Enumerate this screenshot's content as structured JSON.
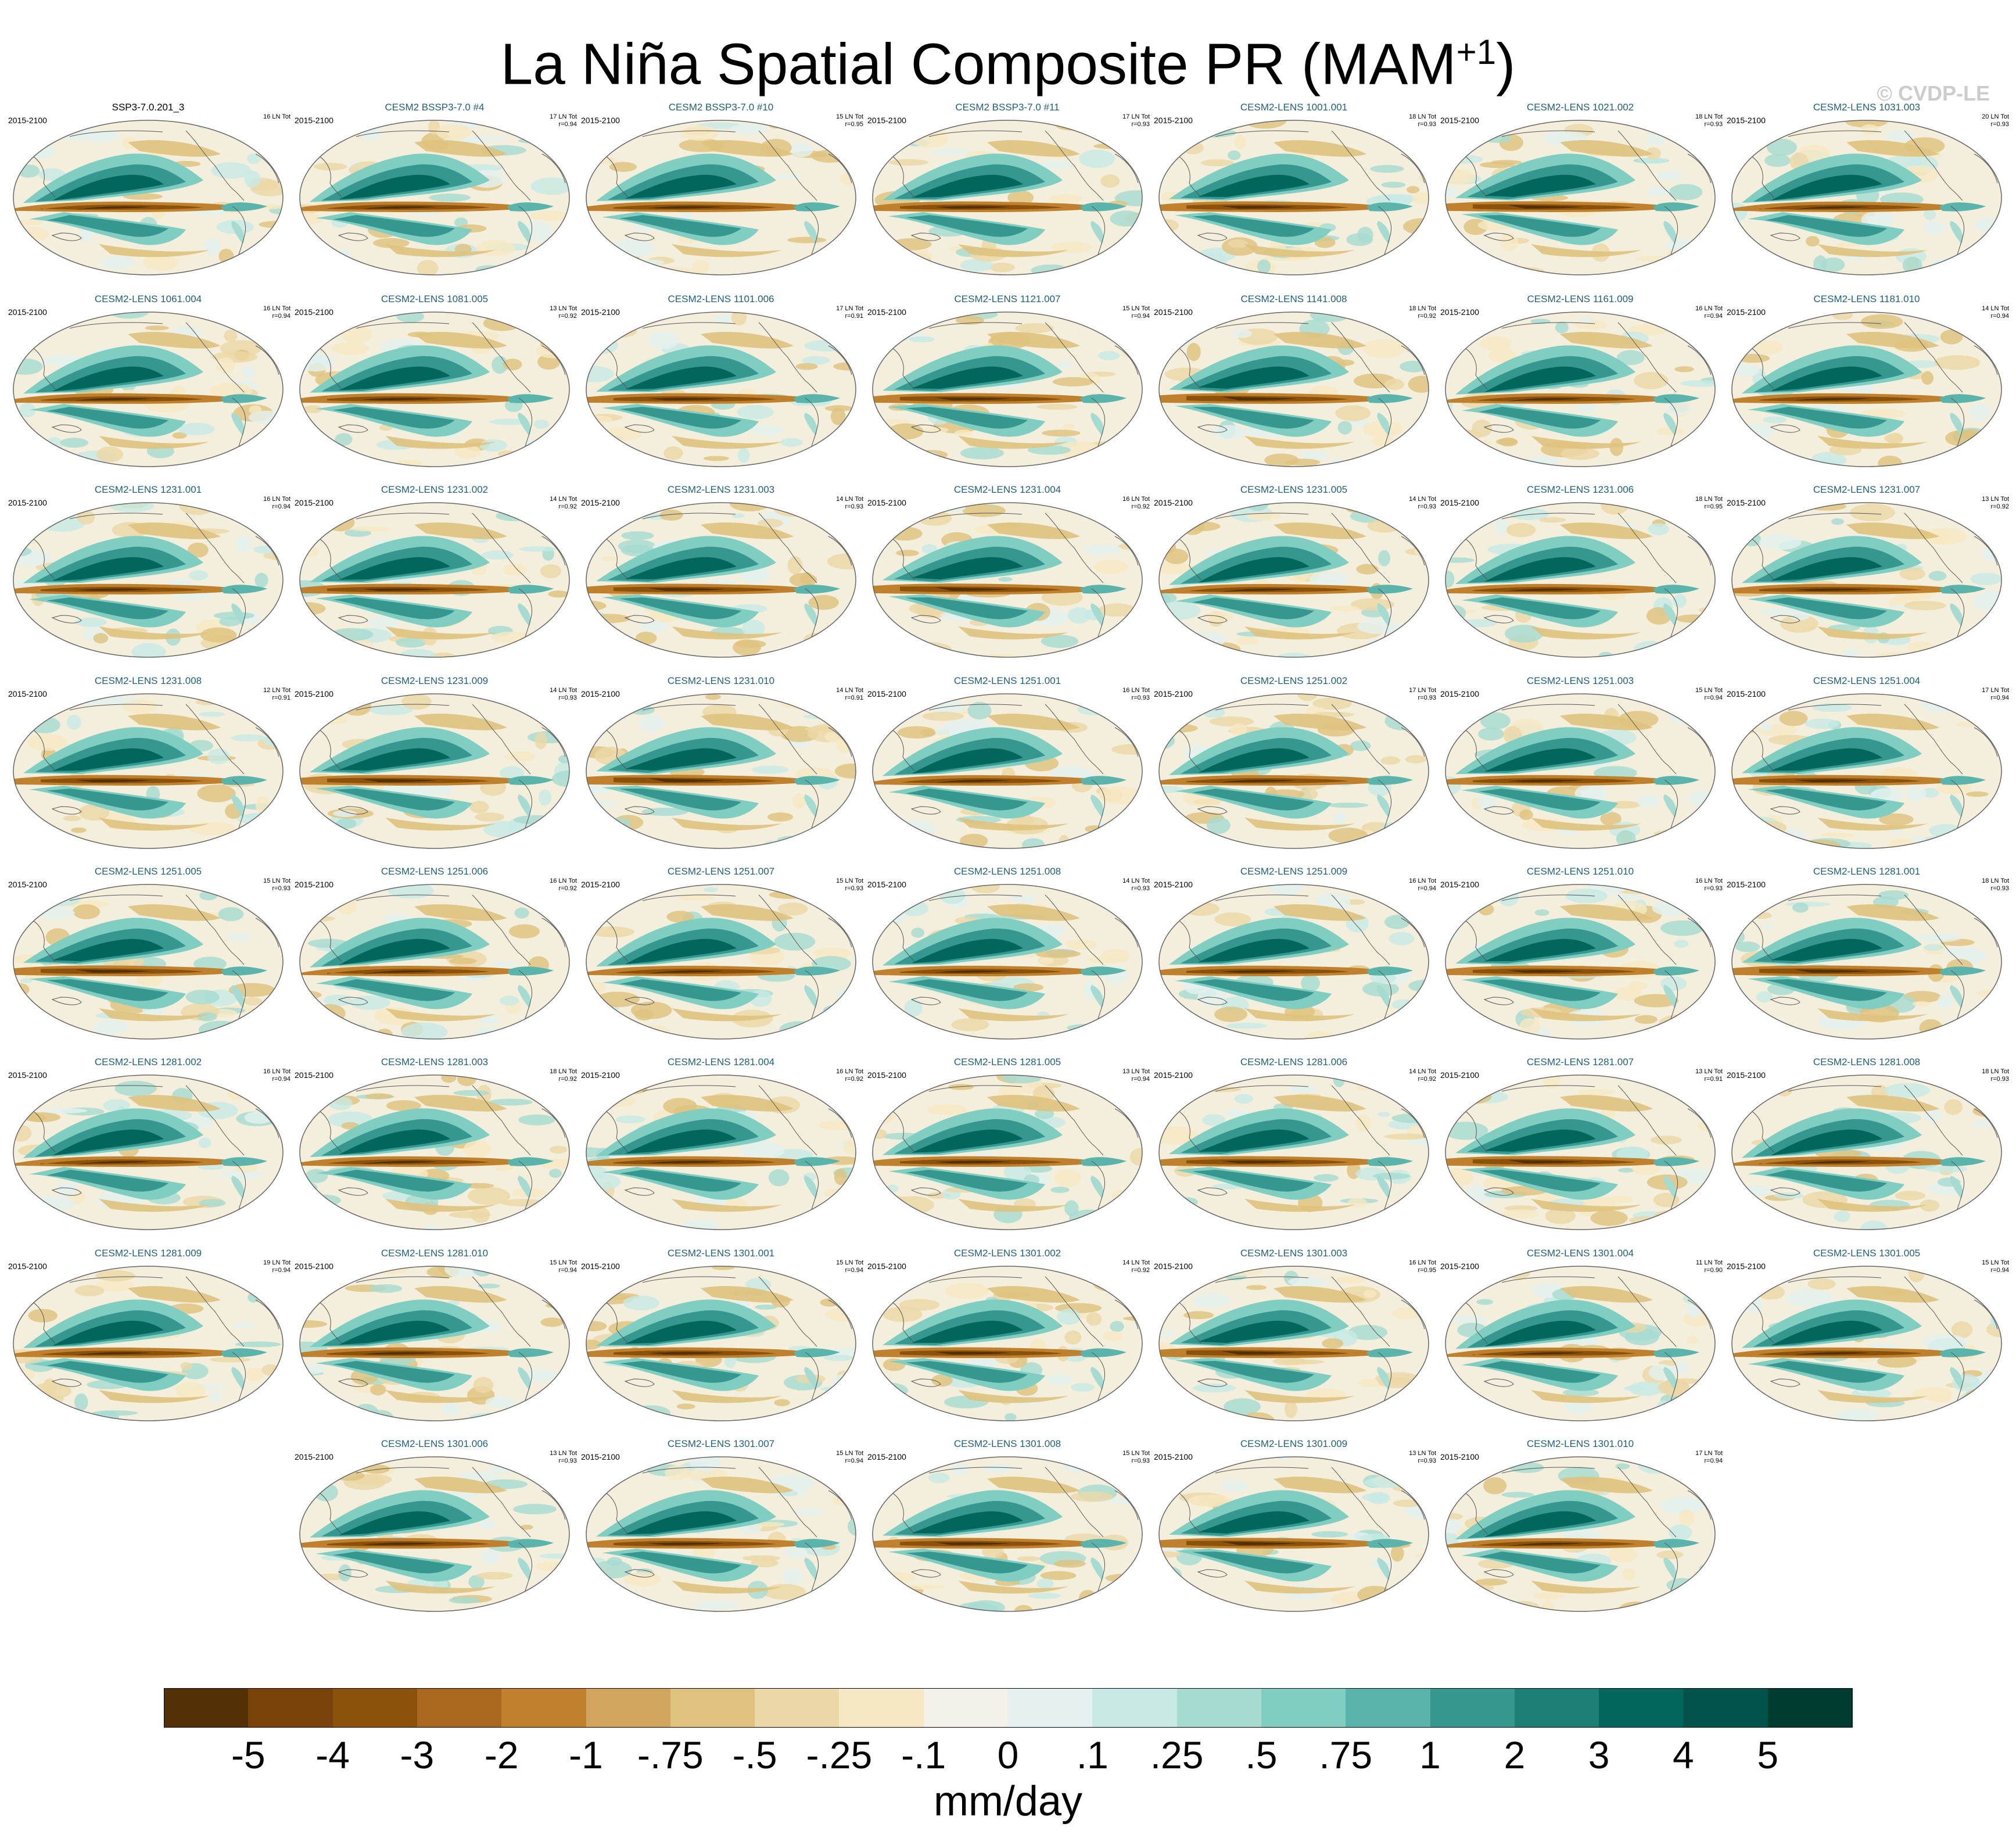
{
  "title": {
    "main": "La Niña Spatial Composite PR (MAM",
    "sup": "+1",
    "close": ")"
  },
  "watermark": "© CVDP-LE",
  "panels": [
    {
      "name": "SSP3-7.0.201_3",
      "period": "2015-2100",
      "events": "16 LN Tot",
      "r": "",
      "obs": true
    },
    {
      "name": "CESM2 BSSP3-7.0 #4",
      "period": "2015-2100",
      "events": "17 LN Tot",
      "r": "r=0.94"
    },
    {
      "name": "CESM2 BSSP3-7.0 #10",
      "period": "2015-2100",
      "events": "15 LN Tot",
      "r": "r=0.95"
    },
    {
      "name": "CESM2 BSSP3-7.0 #11",
      "period": "2015-2100",
      "events": "17 LN Tot",
      "r": "r=0.93"
    },
    {
      "name": "CESM2-LENS 1001.001",
      "period": "2015-2100",
      "events": "18 LN Tot",
      "r": "r=0.93"
    },
    {
      "name": "CESM2-LENS 1021.002",
      "period": "2015-2100",
      "events": "18 LN Tot",
      "r": "r=0.93"
    },
    {
      "name": "CESM2-LENS 1031.003",
      "period": "2015-2100",
      "events": "20 LN Tot",
      "r": "r=0.93"
    },
    {
      "name": "CESM2-LENS 1061.004",
      "period": "2015-2100",
      "events": "16 LN Tot",
      "r": "r=0.94"
    },
    {
      "name": "CESM2-LENS 1081.005",
      "period": "2015-2100",
      "events": "13 LN Tot",
      "r": "r=0.92"
    },
    {
      "name": "CESM2-LENS 1101.006",
      "period": "2015-2100",
      "events": "17 LN Tot",
      "r": "r=0.91"
    },
    {
      "name": "CESM2-LENS 1121.007",
      "period": "2015-2100",
      "events": "15 LN Tot",
      "r": "r=0.94"
    },
    {
      "name": "CESM2-LENS 1141.008",
      "period": "2015-2100",
      "events": "18 LN Tot",
      "r": "r=0.92"
    },
    {
      "name": "CESM2-LENS 1161.009",
      "period": "2015-2100",
      "events": "16 LN Tot",
      "r": "r=0.94"
    },
    {
      "name": "CESM2-LENS 1181.010",
      "period": "2015-2100",
      "events": "14 LN Tot",
      "r": "r=0.94"
    },
    {
      "name": "CESM2-LENS 1231.001",
      "period": "2015-2100",
      "events": "16 LN Tot",
      "r": "r=0.94"
    },
    {
      "name": "CESM2-LENS 1231.002",
      "period": "2015-2100",
      "events": "14 LN Tot",
      "r": "r=0.92"
    },
    {
      "name": "CESM2-LENS 1231.003",
      "period": "2015-2100",
      "events": "14 LN Tot",
      "r": "r=0.93"
    },
    {
      "name": "CESM2-LENS 1231.004",
      "period": "2015-2100",
      "events": "16 LN Tot",
      "r": "r=0.92"
    },
    {
      "name": "CESM2-LENS 1231.005",
      "period": "2015-2100",
      "events": "14 LN Tot",
      "r": "r=0.93"
    },
    {
      "name": "CESM2-LENS 1231.006",
      "period": "2015-2100",
      "events": "18 LN Tot",
      "r": "r=0.95"
    },
    {
      "name": "CESM2-LENS 1231.007",
      "period": "2015-2100",
      "events": "13 LN Tot",
      "r": "r=0.92"
    },
    {
      "name": "CESM2-LENS 1231.008",
      "period": "2015-2100",
      "events": "12 LN Tot",
      "r": "r=0.91"
    },
    {
      "name": "CESM2-LENS 1231.009",
      "period": "2015-2100",
      "events": "14 LN Tot",
      "r": "r=0.93"
    },
    {
      "name": "CESM2-LENS 1231.010",
      "period": "2015-2100",
      "events": "14 LN Tot",
      "r": "r=0.91"
    },
    {
      "name": "CESM2-LENS 1251.001",
      "period": "2015-2100",
      "events": "16 LN Tot",
      "r": "r=0.93"
    },
    {
      "name": "CESM2-LENS 1251.002",
      "period": "2015-2100",
      "events": "17 LN Tot",
      "r": "r=0.93"
    },
    {
      "name": "CESM2-LENS 1251.003",
      "period": "2015-2100",
      "events": "15 LN Tot",
      "r": "r=0.94"
    },
    {
      "name": "CESM2-LENS 1251.004",
      "period": "2015-2100",
      "events": "17 LN Tot",
      "r": "r=0.94"
    },
    {
      "name": "CESM2-LENS 1251.005",
      "period": "2015-2100",
      "events": "15 LN Tot",
      "r": "r=0.93"
    },
    {
      "name": "CESM2-LENS 1251.006",
      "period": "2015-2100",
      "events": "16 LN Tot",
      "r": "r=0.92"
    },
    {
      "name": "CESM2-LENS 1251.007",
      "period": "2015-2100",
      "events": "15 LN Tot",
      "r": "r=0.93"
    },
    {
      "name": "CESM2-LENS 1251.008",
      "period": "2015-2100",
      "events": "14 LN Tot",
      "r": "r=0.93"
    },
    {
      "name": "CESM2-LENS 1251.009",
      "period": "2015-2100",
      "events": "16 LN Tot",
      "r": "r=0.94"
    },
    {
      "name": "CESM2-LENS 1251.010",
      "period": "2015-2100",
      "events": "16 LN Tot",
      "r": "r=0.93"
    },
    {
      "name": "CESM2-LENS 1281.001",
      "period": "2015-2100",
      "events": "18 LN Tot",
      "r": "r=0.93"
    },
    {
      "name": "CESM2-LENS 1281.002",
      "period": "2015-2100",
      "events": "16 LN Tot",
      "r": "r=0.94"
    },
    {
      "name": "CESM2-LENS 1281.003",
      "period": "2015-2100",
      "events": "18 LN Tot",
      "r": "r=0.92"
    },
    {
      "name": "CESM2-LENS 1281.004",
      "period": "2015-2100",
      "events": "16 LN Tot",
      "r": "r=0.92"
    },
    {
      "name": "CESM2-LENS 1281.005",
      "period": "2015-2100",
      "events": "13 LN Tot",
      "r": "r=0.94"
    },
    {
      "name": "CESM2-LENS 1281.006",
      "period": "2015-2100",
      "events": "14 LN Tot",
      "r": "r=0.92"
    },
    {
      "name": "CESM2-LENS 1281.007",
      "period": "2015-2100",
      "events": "13 LN Tot",
      "r": "r=0.91"
    },
    {
      "name": "CESM2-LENS 1281.008",
      "period": "2015-2100",
      "events": "18 LN Tot",
      "r": "r=0.93"
    },
    {
      "name": "CESM2-LENS 1281.009",
      "period": "2015-2100",
      "events": "19 LN Tot",
      "r": "r=0.94"
    },
    {
      "name": "CESM2-LENS 1281.010",
      "period": "2015-2100",
      "events": "15 LN Tot",
      "r": "r=0.94"
    },
    {
      "name": "CESM2-LENS 1301.001",
      "period": "2015-2100",
      "events": "15 LN Tot",
      "r": "r=0.94"
    },
    {
      "name": "CESM2-LENS 1301.002",
      "period": "2015-2100",
      "events": "14 LN Tot",
      "r": "r=0.92"
    },
    {
      "name": "CESM2-LENS 1301.003",
      "period": "2015-2100",
      "events": "16 LN Tot",
      "r": "r=0.95"
    },
    {
      "name": "CESM2-LENS 1301.004",
      "period": "2015-2100",
      "events": "11 LN Tot",
      "r": "r=0.90"
    },
    {
      "name": "CESM2-LENS 1301.005",
      "period": "2015-2100",
      "events": "15 LN Tot",
      "r": "r=0.94"
    },
    {
      "name": "CESM2-LENS 1301.006",
      "period": "2015-2100",
      "events": "13 LN Tot",
      "r": "r=0.93"
    },
    {
      "name": "CESM2-LENS 1301.007",
      "period": "2015-2100",
      "events": "15 LN Tot",
      "r": "r=0.94"
    },
    {
      "name": "CESM2-LENS 1301.008",
      "period": "2015-2100",
      "events": "15 LN Tot",
      "r": "r=0.93"
    },
    {
      "name": "CESM2-LENS 1301.009",
      "period": "2015-2100",
      "events": "13 LN Tot",
      "r": "r=0.93"
    },
    {
      "name": "CESM2-LENS 1301.010",
      "period": "2015-2100",
      "events": "17 LN Tot",
      "r": "r=0.94"
    }
  ],
  "colorbar": {
    "colors": [
      "#543005",
      "#7a4309",
      "#8c510a",
      "#a8691e",
      "#bf812d",
      "#d2a55e",
      "#dfc27d",
      "#ecd7a6",
      "#f6e8c3",
      "#f3f1ea",
      "#e4f1f0",
      "#c7eae5",
      "#a6dbd2",
      "#80cdc1",
      "#5ab4ab",
      "#35978f",
      "#1d7f76",
      "#01665e",
      "#02544b",
      "#003c30"
    ],
    "labels": [
      "-5",
      "-4",
      "-3",
      "-2",
      "-1",
      "-.75",
      "-.5",
      "-.25",
      "-.1",
      "0",
      ".1",
      ".25",
      ".5",
      ".75",
      "1",
      "2",
      "3",
      "4",
      "5"
    ],
    "units": "mm/day"
  }
}
